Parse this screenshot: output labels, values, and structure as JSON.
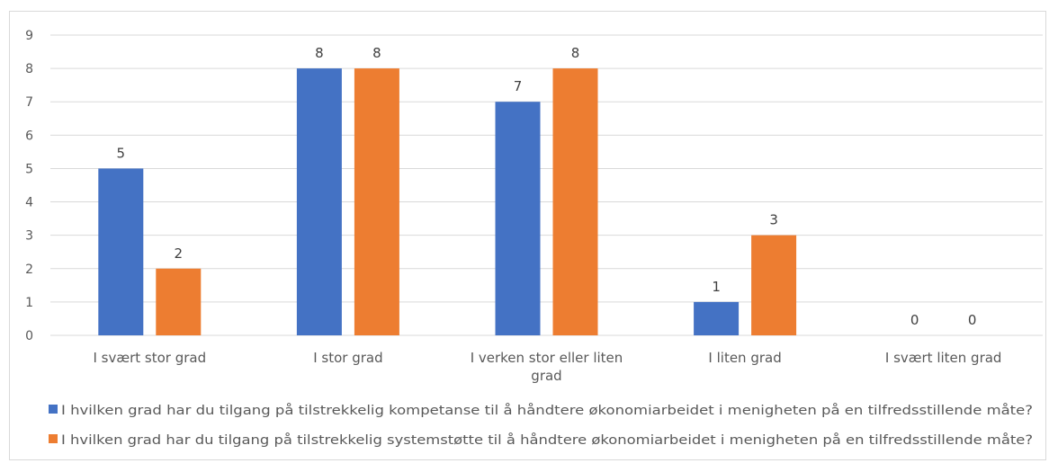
{
  "chart_data": {
    "type": "bar",
    "categories": [
      [
        "I svært stor grad"
      ],
      [
        "I stor grad"
      ],
      [
        "I verken stor eller liten",
        "grad"
      ],
      [
        "I liten grad"
      ],
      [
        "I svært liten grad"
      ]
    ],
    "series": [
      {
        "name": "I hvilken grad har du tilgang på tilstrekkelig kompetanse til å håndtere økonomiarbeidet i menigheten på en tilfredsstillende måte?",
        "color": "#4472c4",
        "values": [
          5,
          8,
          7,
          1,
          0
        ]
      },
      {
        "name": "I hvilken grad har du tilgang på tilstrekkelig systemstøtte til å håndtere økonomiarbeidet i menigheten på en tilfredsstillende måte?",
        "color": "#ed7d31",
        "values": [
          2,
          8,
          8,
          3,
          0
        ]
      }
    ],
    "yticks": [
      0,
      1,
      2,
      3,
      4,
      5,
      6,
      7,
      8,
      9
    ],
    "ylim": [
      0,
      9
    ],
    "grid": true,
    "data_labels": true,
    "legend_position": "bottom"
  }
}
